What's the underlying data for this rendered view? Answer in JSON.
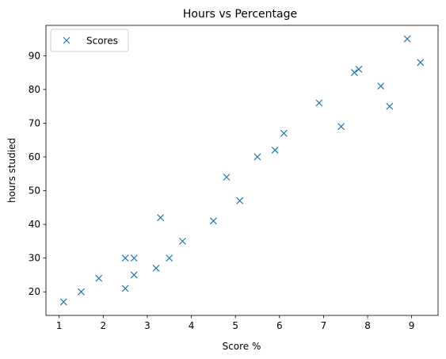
{
  "chart_data": {
    "type": "scatter",
    "title": "Hours vs Percentage",
    "xlabel": "Score %",
    "ylabel": "hours studied",
    "xlim": [
      0.7,
      9.6
    ],
    "ylim": [
      13,
      99
    ],
    "xticks": [
      1,
      2,
      3,
      4,
      5,
      6,
      7,
      8,
      9
    ],
    "yticks": [
      20,
      30,
      40,
      50,
      60,
      70,
      80,
      90
    ],
    "grid": false,
    "legend_position": "upper-left",
    "marker": "x",
    "color": "#1f77b4",
    "series": [
      {
        "name": "Scores",
        "x": [
          2.5,
          5.1,
          3.2,
          8.5,
          3.5,
          1.5,
          9.2,
          5.5,
          8.3,
          2.7,
          7.7,
          5.9,
          4.5,
          3.3,
          1.1,
          8.9,
          2.5,
          1.9,
          6.1,
          7.4,
          2.7,
          4.8,
          3.8,
          6.9,
          7.8
        ],
        "y": [
          21,
          47,
          27,
          75,
          30,
          20,
          88,
          60,
          81,
          25,
          85,
          62,
          41,
          42,
          17,
          95,
          30,
          24,
          67,
          69,
          30,
          54,
          35,
          76,
          86
        ]
      }
    ]
  }
}
